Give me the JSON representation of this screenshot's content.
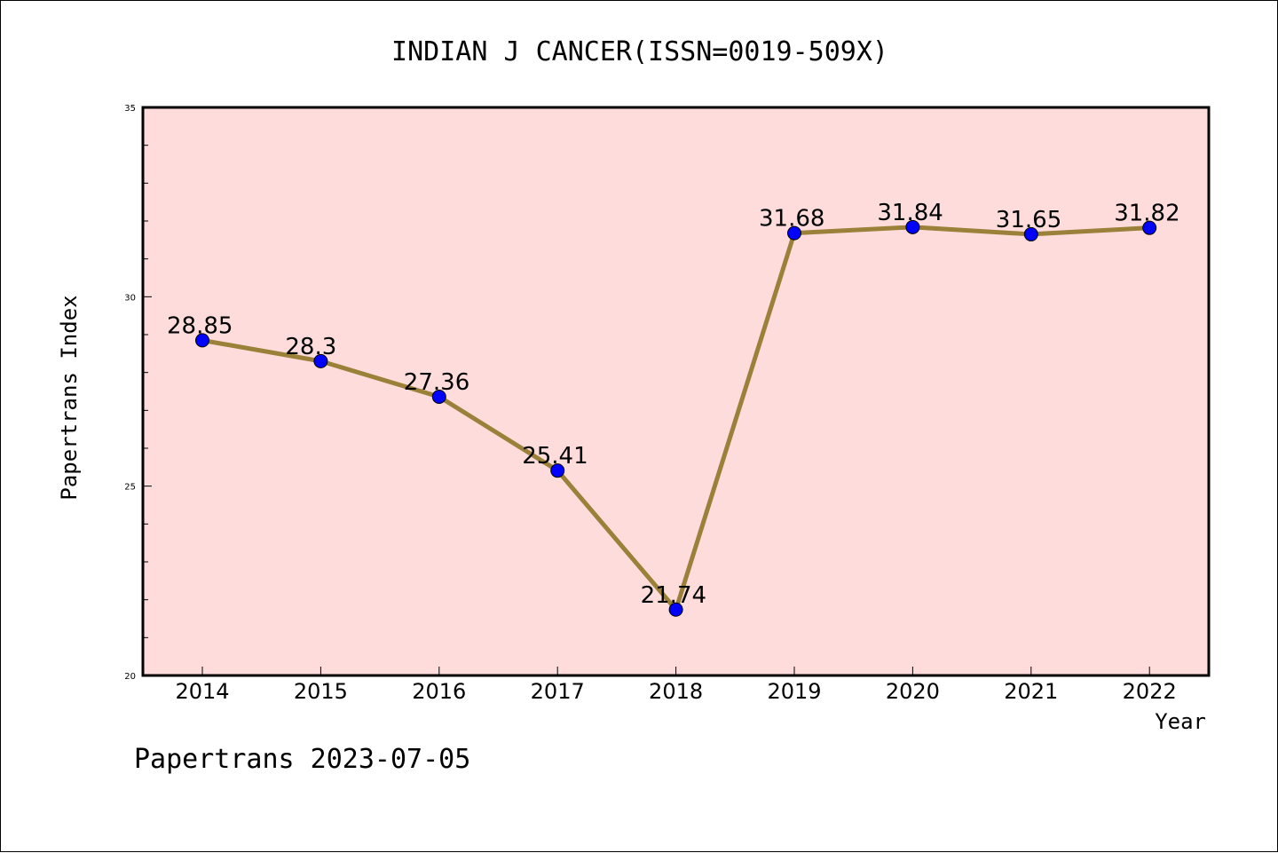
{
  "chart_data": {
    "type": "line",
    "title": "INDIAN J CANCER(ISSN=0019-509X)",
    "xlabel": "Year",
    "ylabel": "Papertrans Index",
    "categories": [
      "2014",
      "2015",
      "2016",
      "2017",
      "2018",
      "2019",
      "2020",
      "2021",
      "2022"
    ],
    "values": [
      28.85,
      28.3,
      27.36,
      25.41,
      21.74,
      31.68,
      31.84,
      31.65,
      31.82
    ],
    "data_labels": [
      "28.85",
      "28.3",
      "27.36",
      "25.41",
      "21.74",
      "31.68",
      "31.84",
      "31.65",
      "31.82"
    ],
    "ylim": [
      20,
      35
    ],
    "yticks": [
      "20",
      "25",
      "30",
      "35"
    ],
    "grid": false,
    "legend": "none",
    "colors": {
      "plot_background": "#ffdcdc",
      "line": "#9b8039",
      "marker": "#0000ff"
    }
  },
  "footer": "Papertrans 2023-07-05"
}
